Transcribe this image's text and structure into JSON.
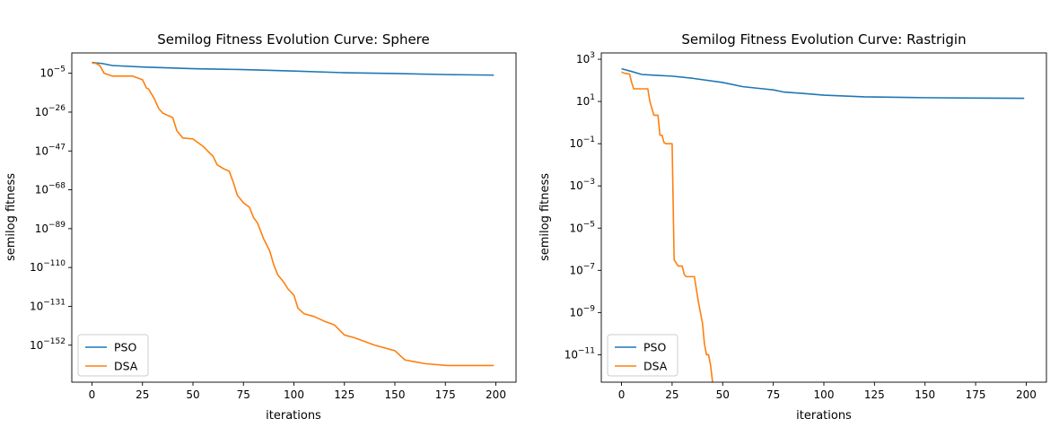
{
  "chart_data": [
    {
      "type": "line",
      "title": "Semilog Fitness Evolution Curve: Sphere",
      "xlabel": "iterations",
      "ylabel": "semilog fitness",
      "yscale": "log",
      "xlim": [
        -10,
        210
      ],
      "ylim_log10": [
        -172,
        6
      ],
      "xticks": [
        0,
        25,
        50,
        75,
        100,
        125,
        150,
        175,
        200
      ],
      "yticks": [
        {
          "exp": -5,
          "label": "−5"
        },
        {
          "exp": -26,
          "label": "−26"
        },
        {
          "exp": -47,
          "label": "−47"
        },
        {
          "exp": -68,
          "label": "−68"
        },
        {
          "exp": -89,
          "label": "−89"
        },
        {
          "exp": -110,
          "label": "−110"
        },
        {
          "exp": -131,
          "label": "−131"
        },
        {
          "exp": -152,
          "label": "−152"
        }
      ],
      "legend": "lower-left",
      "series": [
        {
          "name": "PSO",
          "color": "#1f77b4",
          "x": [
            0,
            5,
            10,
            25,
            50,
            75,
            100,
            125,
            150,
            175,
            199
          ],
          "log10_y": [
            0.8,
            0.3,
            -0.8,
            -1.6,
            -2.5,
            -3.0,
            -3.8,
            -4.7,
            -5.1,
            -5.7,
            -6.0
          ]
        },
        {
          "name": "DSA",
          "color": "#ff7f0e",
          "x": [
            0,
            2,
            4,
            6,
            10,
            15,
            20,
            25,
            27,
            28,
            31,
            33,
            35,
            40,
            42,
            45,
            50,
            55,
            60,
            62,
            65,
            68,
            70,
            72,
            75,
            78,
            80,
            82,
            85,
            88,
            90,
            92,
            95,
            97,
            100,
            102,
            105,
            110,
            115,
            120,
            125,
            130,
            140,
            150,
            155,
            160,
            165,
            176,
            199
          ],
          "log10_y": [
            0.5,
            0.4,
            -1.0,
            -5.0,
            -6.5,
            -6.5,
            -6.5,
            -8.5,
            -13.0,
            -13.5,
            -19.0,
            -24.0,
            -26.5,
            -29.0,
            -36.0,
            -40.0,
            -40.5,
            -44.5,
            -50.0,
            -54.5,
            -56.5,
            -58.0,
            -64.0,
            -71.0,
            -75.0,
            -77.5,
            -83.0,
            -86.0,
            -94.5,
            -101.0,
            -108.5,
            -114.0,
            -118.0,
            -121.5,
            -125.0,
            -132.0,
            -135.0,
            -136.5,
            -139.0,
            -141.0,
            -146.5,
            -148.0,
            -152.0,
            -155.0,
            -160.0,
            -161.0,
            -162.0,
            -163.0,
            -163.0
          ]
        }
      ]
    },
    {
      "type": "line",
      "title": "Semilog Fitness Evolution Curve: Rastrigin",
      "xlabel": "iterations",
      "ylabel": "semilog fitness",
      "yscale": "log",
      "xlim": [
        -10,
        210
      ],
      "ylim_log10": [
        -12.3,
        3.3
      ],
      "xticks": [
        0,
        25,
        50,
        75,
        100,
        125,
        150,
        175,
        200
      ],
      "yticks": [
        {
          "exp": 3,
          "label": "3"
        },
        {
          "exp": 1,
          "label": "1"
        },
        {
          "exp": -1,
          "label": "−1"
        },
        {
          "exp": -3,
          "label": "−3"
        },
        {
          "exp": -5,
          "label": "−5"
        },
        {
          "exp": -7,
          "label": "−7"
        },
        {
          "exp": -9,
          "label": "−9"
        },
        {
          "exp": -11,
          "label": "−11"
        }
      ],
      "legend": "lower-left",
      "series": [
        {
          "name": "PSO",
          "color": "#1f77b4",
          "x": [
            0,
            5,
            10,
            15,
            25,
            35,
            50,
            60,
            70,
            75,
            80,
            90,
            100,
            120,
            150,
            175,
            199
          ],
          "log10_y": [
            2.55,
            2.42,
            2.28,
            2.25,
            2.2,
            2.1,
            1.9,
            1.7,
            1.6,
            1.55,
            1.45,
            1.38,
            1.3,
            1.22,
            1.18,
            1.16,
            1.15
          ]
        },
        {
          "name": "DSA",
          "color": "#ff7f0e",
          "x": [
            0,
            1,
            2,
            4,
            5,
            6,
            10,
            13,
            14,
            16,
            17,
            18,
            19,
            20,
            21,
            22,
            23,
            24,
            25,
            26,
            28,
            30,
            31,
            32,
            35,
            36,
            38,
            40,
            41,
            42,
            43,
            44,
            45
          ],
          "log10_y": [
            2.4,
            2.35,
            2.33,
            2.3,
            1.9,
            1.6,
            1.6,
            1.6,
            1.0,
            0.35,
            0.35,
            0.35,
            -0.6,
            -0.6,
            -0.95,
            -1.0,
            -1.0,
            -1.0,
            -1.0,
            -6.5,
            -6.8,
            -6.8,
            -7.2,
            -7.3,
            -7.3,
            -7.3,
            -8.5,
            -9.5,
            -10.5,
            -11.0,
            -11.0,
            -11.5,
            -12.3
          ]
        }
      ]
    }
  ]
}
